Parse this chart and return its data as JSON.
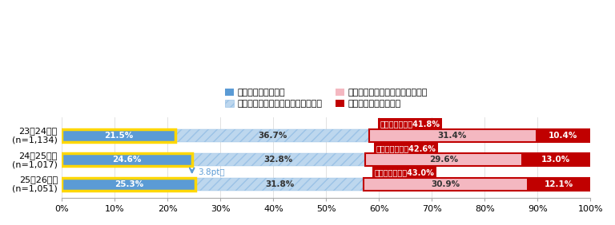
{
  "categories": [
    "23・24年卒\n(n=1,134)",
    "24・25年卒\n(n=1,017)",
    "25・26年卒\n(n=1,051)"
  ],
  "series_keys": [
    "全く決まっていない",
    "どちらかといえば、決まっていない",
    "どちらかといえば、決まっている",
    "具体的に決まっている"
  ],
  "series": {
    "全く決まっていない": [
      21.5,
      24.6,
      25.3
    ],
    "どちらかといえば、決まっていない": [
      36.7,
      32.8,
      31.8
    ],
    "どちらかといえば、決まっている": [
      31.4,
      29.6,
      30.9
    ],
    "具体的に決まっている": [
      10.4,
      13.0,
      12.1
    ]
  },
  "colors": {
    "全く決まっていない": "#5B9BD5",
    "どちらかといえば、決まっていない": "#BDD7EE",
    "どちらかといえば、決まっている": "#F4B8C1",
    "具体的に決まっている": "#C00000"
  },
  "hatch": {
    "全く決まっていない": "",
    "どちらかといえば、決まっていない": "///",
    "どちらかといえば、決まっている": "",
    "具体的に決まっている": ""
  },
  "decided_labels": [
    "決まっている：41.8%",
    "決まっている：42.6%",
    "決まっている：43.0%"
  ],
  "arrow_text": "3.8pt増",
  "legend_order": [
    [
      "全く決まっていない",
      "どちらかといえば、決まっていない"
    ],
    [
      "どちらかといえば、決まっている",
      "具体的に決まっている"
    ]
  ],
  "xlim": [
    0,
    1.0
  ],
  "xticks": [
    0,
    0.1,
    0.2,
    0.3,
    0.4,
    0.5,
    0.6,
    0.7,
    0.8,
    0.9,
    1.0
  ],
  "xtick_labels": [
    "0%",
    "10%",
    "20%",
    "30%",
    "40%",
    "50%",
    "60%",
    "70%",
    "80%",
    "90%",
    "100%"
  ],
  "background_color": "#ffffff",
  "grid_color": "#dddddd"
}
